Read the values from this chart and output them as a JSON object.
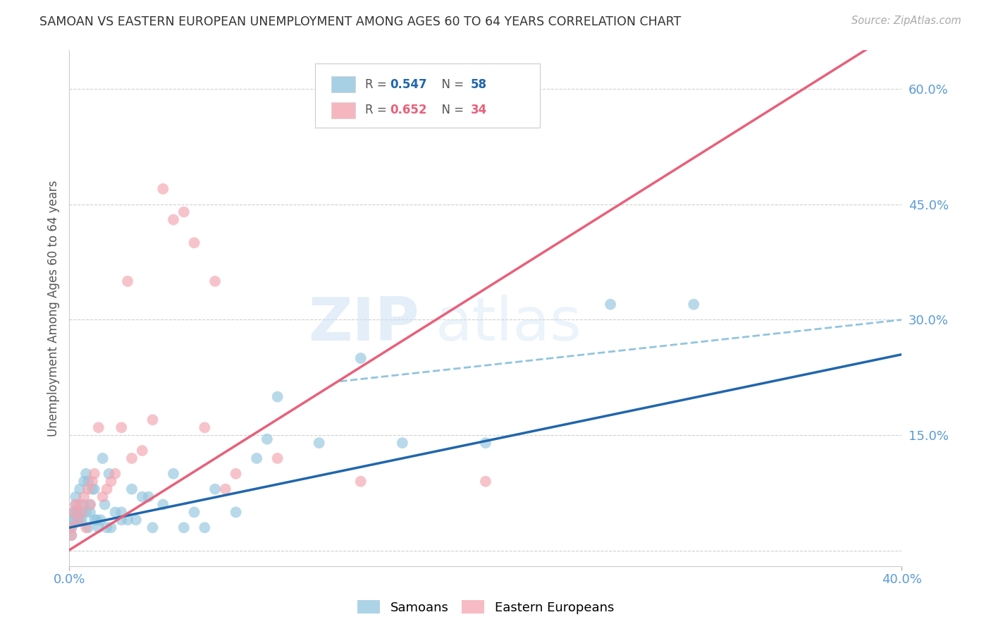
{
  "title": "SAMOAN VS EASTERN EUROPEAN UNEMPLOYMENT AMONG AGES 60 TO 64 YEARS CORRELATION CHART",
  "source": "Source: ZipAtlas.com",
  "ylabel": "Unemployment Among Ages 60 to 64 years",
  "watermark_zip": "ZIP",
  "watermark_atlas": "atlas",
  "xlim": [
    0.0,
    0.4
  ],
  "ylim": [
    -0.02,
    0.65
  ],
  "xticks": [
    0.0,
    0.4
  ],
  "xtick_labels": [
    "0.0%",
    "40.0%"
  ],
  "yticks_right": [
    0.0,
    0.15,
    0.3,
    0.45,
    0.6
  ],
  "ytick_labels_right": [
    "",
    "15.0%",
    "30.0%",
    "45.0%",
    "60.0%"
  ],
  "samoans_R": "0.547",
  "samoans_N": "58",
  "eastern_R": "0.652",
  "eastern_N": "34",
  "samoan_color": "#92c5de",
  "eastern_color": "#f4a4b0",
  "samoan_line_color": "#2166ac",
  "eastern_line_color": "#e8607a",
  "dashed_line_color": "#92c5de",
  "background_color": "#ffffff",
  "grid_color": "#d0d0d0",
  "title_color": "#333333",
  "axis_color": "#5b9bd5",
  "legend_label_samoan": "Samoans",
  "legend_label_eastern": "Eastern Europeans",
  "samoans_x": [
    0.001,
    0.001,
    0.002,
    0.002,
    0.002,
    0.003,
    0.003,
    0.003,
    0.004,
    0.004,
    0.005,
    0.005,
    0.006,
    0.006,
    0.007,
    0.007,
    0.008,
    0.008,
    0.009,
    0.009,
    0.01,
    0.01,
    0.011,
    0.012,
    0.012,
    0.013,
    0.014,
    0.015,
    0.016,
    0.017,
    0.018,
    0.019,
    0.02,
    0.022,
    0.025,
    0.025,
    0.028,
    0.03,
    0.032,
    0.035,
    0.038,
    0.04,
    0.045,
    0.05,
    0.055,
    0.06,
    0.065,
    0.07,
    0.08,
    0.09,
    0.095,
    0.1,
    0.12,
    0.14,
    0.16,
    0.2,
    0.26,
    0.3
  ],
  "samoans_y": [
    0.02,
    0.03,
    0.04,
    0.04,
    0.05,
    0.05,
    0.06,
    0.07,
    0.04,
    0.05,
    0.04,
    0.08,
    0.04,
    0.05,
    0.09,
    0.06,
    0.1,
    0.05,
    0.09,
    0.03,
    0.05,
    0.06,
    0.08,
    0.04,
    0.08,
    0.04,
    0.03,
    0.04,
    0.12,
    0.06,
    0.03,
    0.1,
    0.03,
    0.05,
    0.04,
    0.05,
    0.04,
    0.08,
    0.04,
    0.07,
    0.07,
    0.03,
    0.06,
    0.1,
    0.03,
    0.05,
    0.03,
    0.08,
    0.05,
    0.12,
    0.145,
    0.2,
    0.14,
    0.25,
    0.14,
    0.14,
    0.32,
    0.32
  ],
  "eastern_x": [
    0.001,
    0.001,
    0.002,
    0.003,
    0.004,
    0.005,
    0.006,
    0.007,
    0.008,
    0.009,
    0.01,
    0.011,
    0.012,
    0.014,
    0.016,
    0.018,
    0.02,
    0.022,
    0.025,
    0.028,
    0.03,
    0.035,
    0.04,
    0.045,
    0.05,
    0.055,
    0.06,
    0.065,
    0.07,
    0.075,
    0.08,
    0.1,
    0.14,
    0.2
  ],
  "eastern_y": [
    0.02,
    0.03,
    0.05,
    0.06,
    0.04,
    0.06,
    0.05,
    0.07,
    0.03,
    0.08,
    0.06,
    0.09,
    0.1,
    0.16,
    0.07,
    0.08,
    0.09,
    0.1,
    0.16,
    0.35,
    0.12,
    0.13,
    0.17,
    0.47,
    0.43,
    0.44,
    0.4,
    0.16,
    0.35,
    0.08,
    0.1,
    0.12,
    0.09,
    0.09
  ],
  "samoan_trendline": [
    0.0,
    0.4,
    0.03,
    0.255
  ],
  "eastern_trendline": [
    -0.03,
    0.4,
    -0.05,
    0.68
  ],
  "dashed_line": [
    0.13,
    0.4,
    0.22,
    0.3
  ]
}
